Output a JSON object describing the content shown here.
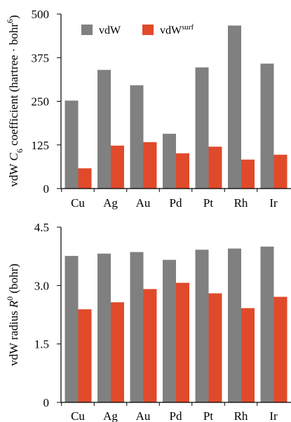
{
  "colors": {
    "vdW": "#808080",
    "vdWsurf": "#e04a2a",
    "axis": "#000000"
  },
  "legend": {
    "vdW": "vdW",
    "vdWsurf_base": "vdW",
    "vdWsurf_sup": "surf"
  },
  "chart_data": [
    {
      "type": "bar",
      "categories": [
        "Cu",
        "Ag",
        "Au",
        "Pd",
        "Pt",
        "Rh",
        "Ir"
      ],
      "series": [
        {
          "name": "vdW",
          "values": [
            252,
            340,
            296,
            157,
            347,
            467,
            358
          ]
        },
        {
          "name": "vdWsurf",
          "values": [
            58,
            123,
            133,
            101,
            120,
            83,
            97
          ]
        }
      ],
      "ylabel_parts": [
        "vdW ",
        "C",
        "6",
        " coefficient (hartree · bohr",
        "6",
        ")"
      ],
      "ylim": [
        0,
        500
      ],
      "yticks": [
        "0",
        "125",
        "250",
        "375",
        "500"
      ],
      "legend_position": "top-left"
    },
    {
      "type": "bar",
      "categories": [
        "Cu",
        "Ag",
        "Au",
        "Pd",
        "Pt",
        "Rh",
        "Ir"
      ],
      "series": [
        {
          "name": "vdW",
          "values": [
            3.76,
            3.82,
            3.86,
            3.66,
            3.92,
            3.95,
            4.0
          ]
        },
        {
          "name": "vdWsurf",
          "values": [
            2.39,
            2.57,
            2.91,
            3.07,
            2.8,
            2.42,
            2.71
          ]
        }
      ],
      "ylabel_parts": [
        "vdW radius ",
        "R",
        "0",
        " (bohr)"
      ],
      "ylim": [
        0,
        4.5
      ],
      "yticks": [
        "0",
        "1.5",
        "3.0",
        "4.5"
      ]
    }
  ]
}
